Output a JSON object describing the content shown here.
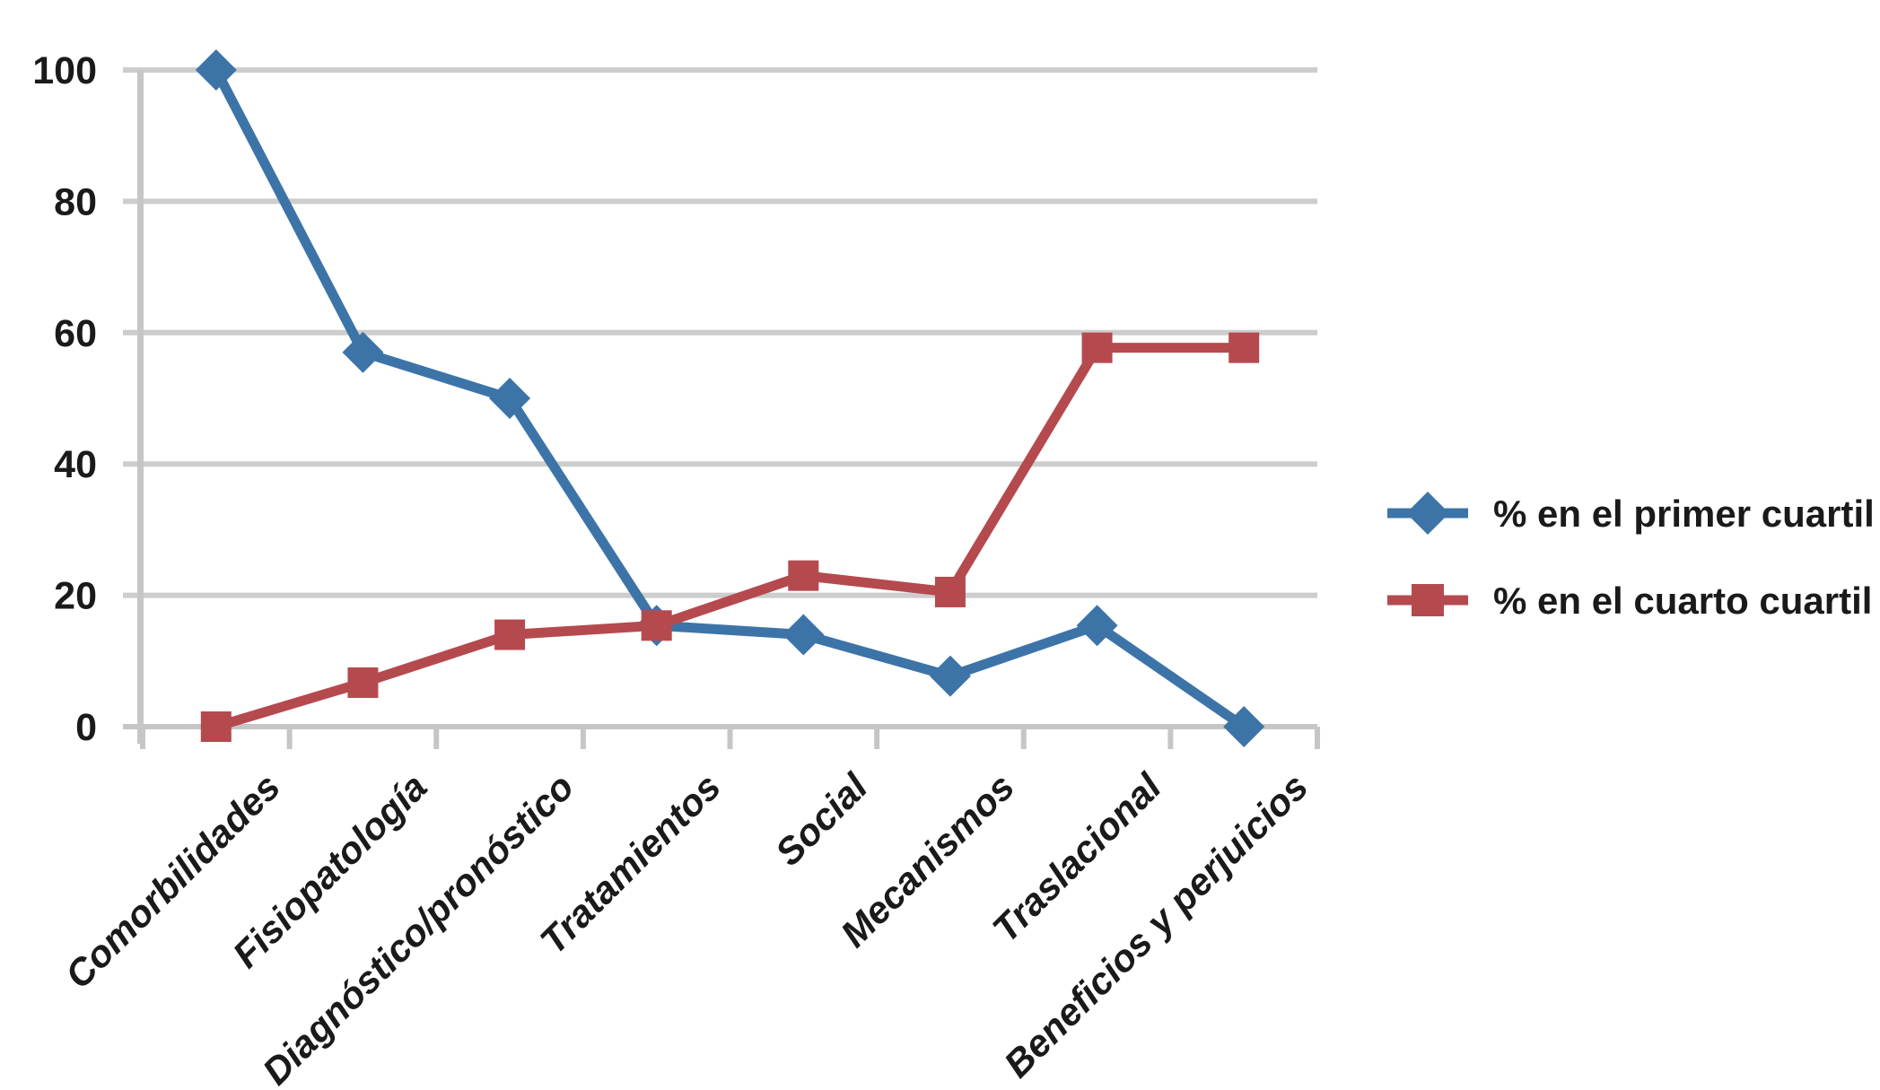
{
  "chart_data": {
    "type": "line",
    "title": "",
    "xlabel": "",
    "ylabel": "",
    "categories": [
      "Comorbilidades",
      "Fisiopatología",
      "Diagnóstico/pronóstico",
      "Tratamientos",
      "Social",
      "Mecanismos",
      "Traslacional",
      "Beneficios y perjuicios"
    ],
    "series": [
      {
        "name": "% en el primer cuartil",
        "marker": "diamond",
        "color": "#3d74a8",
        "values": [
          100,
          57,
          50,
          15.4,
          14,
          7.7,
          15.4,
          0
        ]
      },
      {
        "name": "% en el cuarto cuartil",
        "marker": "square",
        "color": "#b54a4e",
        "values": [
          0,
          6.7,
          14,
          15.4,
          23,
          20.5,
          57.7,
          57.7
        ]
      }
    ],
    "ylim": [
      0,
      100
    ],
    "yticks": [
      0,
      20,
      40,
      60,
      80,
      100
    ],
    "grid": true,
    "legend_position": "right"
  },
  "colors": {
    "gridline": "#cdcdcd",
    "axis": "#c6c6c6",
    "text": "#1a1a1a",
    "background": "#ffffff"
  }
}
